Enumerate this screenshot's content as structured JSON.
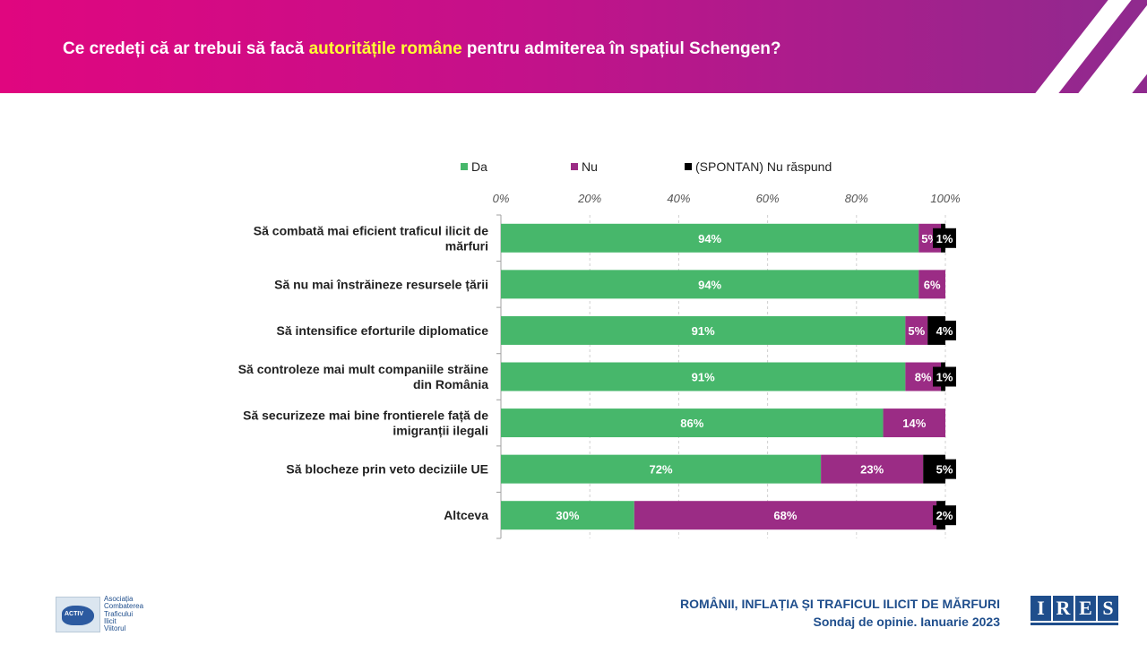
{
  "header": {
    "title_pre": "Ce credeți că ar trebui să facă ",
    "title_highlight": "autoritățile române",
    "title_post": " pentru admiterea în spațiul Schengen?"
  },
  "colors": {
    "da": "#47b76b",
    "nu": "#9b2c85",
    "nr": "#000000",
    "highlight": "#ffff33",
    "footer": "#1f4e8c"
  },
  "chart_data": {
    "type": "bar",
    "orientation": "horizontal",
    "stacked": true,
    "categories": [
      "Să combată mai eficient traficul ilicit de mărfuri",
      "Să nu mai înstrăineze resursele țării",
      "Să intensifice eforturile diplomatice",
      "Să controleze mai mult companiile străine din România",
      "Să securizeze mai bine frontierele față de imigranții ilegali",
      "Să blocheze prin veto deciziile UE",
      "Altceva"
    ],
    "category_lines": [
      [
        "Să combată mai eficient traficul ilicit de",
        "mărfuri"
      ],
      [
        "Să nu mai înstrăineze resursele țării"
      ],
      [
        "Să intensifice eforturile diplomatice"
      ],
      [
        "Să controleze mai mult companiile străine",
        "din România"
      ],
      [
        "Să securizeze mai bine frontierele față de",
        "imigranții ilegali"
      ],
      [
        "Să blocheze prin veto deciziile UE"
      ],
      [
        "Altceva"
      ]
    ],
    "series": [
      {
        "name": "Da",
        "values": [
          94,
          94,
          91,
          91,
          86,
          72,
          30
        ],
        "labels": [
          "94%",
          "94%",
          "91%",
          "91%",
          "86%",
          "72%",
          "30%"
        ]
      },
      {
        "name": "Nu",
        "values": [
          5,
          6,
          5,
          8,
          14,
          23,
          68
        ],
        "labels": [
          "5%",
          "6%",
          "5%",
          "8%",
          "14%",
          "23%",
          "68%"
        ]
      },
      {
        "name": "(SPONTAN) Nu răspund",
        "values": [
          1,
          0,
          4,
          1,
          0,
          5,
          2
        ],
        "labels": [
          "1%",
          "",
          "4%",
          "1%",
          "",
          "5%",
          "2%"
        ]
      }
    ],
    "xlim": [
      0,
      100
    ],
    "xticks": [
      "0%",
      "20%",
      "40%",
      "60%",
      "80%",
      "100%"
    ],
    "legend_position": "top",
    "grid": true
  },
  "footer": {
    "line1": "ROMÂNII, INFLAȚIA ȘI TRAFICUL ILICIT DE MĂRFURI",
    "line2": "Sondaj de opinie. Ianuarie 2023"
  },
  "logo_left": {
    "badge": "ACTIV",
    "lines": [
      "Asociația",
      "Combaterea",
      "Traficului",
      "Ilicit",
      "Viitorul"
    ]
  },
  "logo_right": {
    "letters": [
      "I",
      "R",
      "E",
      "S"
    ]
  }
}
